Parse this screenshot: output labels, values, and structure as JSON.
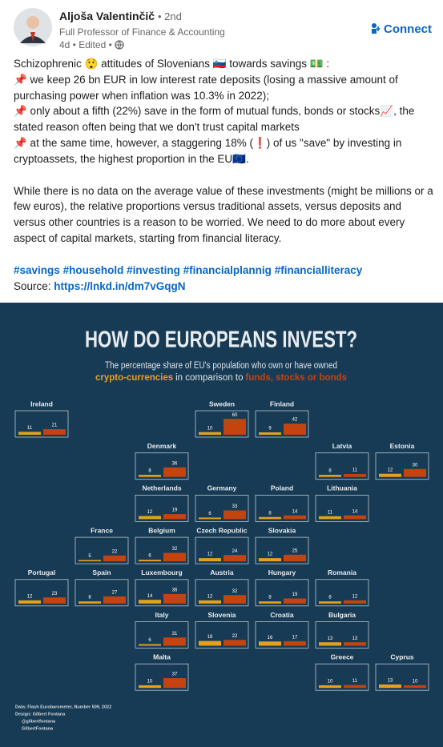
{
  "post": {
    "author": "Aljoša Valentinčič",
    "degree": "• 2nd",
    "headline": "Full Professor of Finance & Accounting",
    "meta": "4d • Edited •",
    "connect": "Connect",
    "lines": [
      "Schizophrenic 😲 attitudes of Slovenians 🇸🇮 towards savings 💵 :",
      "📌 we keep 26 bn EUR in low interest rate deposits (losing a massive amount of purchasing power when inflation was 10.3% in 2022);",
      "📌 only about a fifth (22%) save in the form of mutual funds, bonds or stocks📈, the stated reason often being that we don't trust capital markets",
      "📌 at the same time, however, a staggering 18% (❗) of us \"save\" by investing in cryptoassets, the highest proportion in the EU🇪🇺."
    ],
    "paragraph": "While there is no data on the average value of these investments (might be millions or a few euros), the relative proportions versus traditional assets, versus deposits and versus other countries is a reason to be worried. We need to do more about every aspect of capital markets, starting from financial literacy.",
    "hashtags": [
      "#savings",
      "#household",
      "#investing",
      "#financialplannig",
      "#financialliteracy"
    ],
    "source_label": "Source:",
    "source_link": "https://lnkd.in/dm7vGqgN"
  },
  "chart_data": {
    "type": "bar",
    "title": "HOW DO EUROPEANS INVEST?",
    "subtitle": "The percentage share of EU's population who own or have owned",
    "subtitle_connector": "in comparison to",
    "categories": [
      "Ireland",
      "Sweden",
      "Finland",
      "Denmark",
      "Latvia",
      "Estonia",
      "Netherlands",
      "Germany",
      "Poland",
      "Lithuania",
      "France",
      "Belgium",
      "Czech Republic",
      "Slovakia",
      "Portugal",
      "Spain",
      "Luxembourg",
      "Austria",
      "Hungary",
      "Romania",
      "Italy",
      "Slovenia",
      "Croatia",
      "Bulgaria",
      "Malta",
      "Greece",
      "Cyprus"
    ],
    "series": [
      {
        "name": "crypto-currencies",
        "color": "#e5a11d",
        "values": [
          11,
          10,
          9,
          8,
          8,
          12,
          12,
          6,
          8,
          11,
          5,
          6,
          12,
          12,
          12,
          8,
          14,
          12,
          8,
          8,
          6,
          18,
          16,
          13,
          10,
          10,
          13
        ]
      },
      {
        "name": "funds, stocks or bonds",
        "color": "#c4430f",
        "values": [
          21,
          60,
          42,
          36,
          11,
          30,
          19,
          33,
          14,
          14,
          22,
          32,
          24,
          25,
          23,
          27,
          36,
          32,
          19,
          12,
          31,
          22,
          17,
          13,
          37,
          11,
          10
        ]
      }
    ],
    "footer": [
      "Data: Flash Eurobarometer, Number 509, 2022",
      "Design: Gilbert Fontana",
      "@gilbertfontana",
      "GilbertFontana"
    ]
  }
}
